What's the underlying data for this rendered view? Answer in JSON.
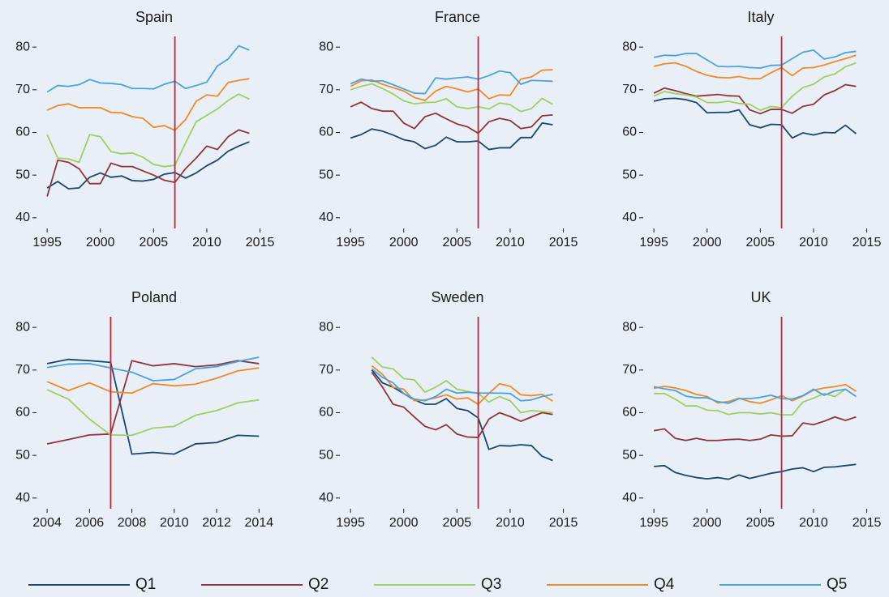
{
  "legend": [
    {
      "name": "Q1",
      "color": "#1a476f"
    },
    {
      "name": "Q2",
      "color": "#90353b"
    },
    {
      "name": "Q3",
      "color": "#a0cf63"
    },
    {
      "name": "Q4",
      "color": "#ee8a2c"
    },
    {
      "name": "Q5",
      "color": "#4aa3df"
    }
  ],
  "chart_data": [
    {
      "type": "line",
      "title": "Spain",
      "vline": 2007,
      "vline_color": "#c0273d",
      "x": [
        1995,
        1996,
        1997,
        1998,
        1999,
        2000,
        2001,
        2002,
        2003,
        2004,
        2005,
        2006,
        2007,
        2008,
        2009,
        2010,
        2011,
        2012,
        2013,
        2014
      ],
      "series": [
        {
          "values": [
            47,
            48.5,
            46.8,
            47,
            49.5,
            50.5,
            49.5,
            49.8,
            48.7,
            48.6,
            49,
            50.2,
            50.6,
            49.3,
            50.5,
            52.2,
            53.5,
            55.6,
            56.8,
            57.8
          ]
        },
        {
          "values": [
            45,
            53.5,
            53,
            51.5,
            48,
            48,
            52.8,
            52,
            52,
            51,
            50,
            48.8,
            48.3,
            51.5,
            54,
            56.8,
            56,
            59,
            60.6,
            59.8
          ]
        },
        {
          "values": [
            59.5,
            54,
            53.8,
            53,
            59.5,
            59,
            55.5,
            55,
            55.2,
            54.2,
            52.5,
            52,
            52.3,
            57.5,
            62.5,
            64,
            65.5,
            67.5,
            69,
            67.8
          ]
        },
        {
          "values": [
            65.2,
            66.3,
            66.7,
            65.8,
            65.8,
            65.8,
            64.7,
            64.6,
            63.7,
            63.3,
            61.2,
            61.6,
            60.5,
            63,
            67.3,
            68.8,
            68.5,
            71.7,
            72.2,
            72.6
          ]
        },
        {
          "values": [
            69.5,
            71,
            70.8,
            71.2,
            72.4,
            71.6,
            71.5,
            71.2,
            70.3,
            70.3,
            70.2,
            71.3,
            72,
            70.3,
            71,
            71.8,
            75.6,
            77.2,
            80.3,
            79.3
          ]
        }
      ],
      "xlim": [
        1994,
        2016.1
      ],
      "ylim": [
        37.5,
        82.5
      ],
      "xticks": [
        1995,
        2000,
        2005,
        2010,
        2015
      ],
      "yticks": [
        40,
        50,
        60,
        70,
        80
      ]
    },
    {
      "type": "line",
      "title": "France",
      "vline": 2007,
      "vline_color": "#c0273d",
      "x": [
        1995,
        1996,
        1997,
        1998,
        1999,
        2000,
        2001,
        2002,
        2003,
        2004,
        2005,
        2006,
        2007,
        2008,
        2009,
        2010,
        2011,
        2012,
        2013,
        2014
      ],
      "series": [
        {
          "values": [
            58.7,
            59.5,
            60.8,
            60.3,
            59.4,
            58.3,
            57.8,
            56.2,
            57,
            58.9,
            57.8,
            57.8,
            58,
            56,
            56.4,
            56.4,
            58.8,
            58.8,
            62.2,
            61.8
          ]
        },
        {
          "values": [
            66,
            67.1,
            65.6,
            65,
            65,
            62.2,
            60.9,
            63.7,
            64.5,
            63.2,
            62,
            61.3,
            59.8,
            62.5,
            63.3,
            62.8,
            60.9,
            61.3,
            63.9,
            64.1
          ]
        },
        {
          "values": [
            70,
            70.8,
            71.4,
            70.3,
            69,
            67.4,
            66.7,
            67,
            67.1,
            67.9,
            66,
            65.6,
            66,
            65.5,
            66.9,
            66.5,
            64.9,
            65.6,
            68,
            66.6
          ]
        },
        {
          "values": [
            70.8,
            72.1,
            72.3,
            71.3,
            70.5,
            69.7,
            68.2,
            67.5,
            69.7,
            70.8,
            70.2,
            69.5,
            70.2,
            67.9,
            68.8,
            68.7,
            72.5,
            73,
            74.6,
            74.7
          ]
        },
        {
          "values": [
            71.4,
            72.5,
            72,
            72.1,
            71.2,
            70.2,
            69.2,
            69.1,
            72.8,
            72.5,
            72.8,
            73,
            72.5,
            73.3,
            74.4,
            74,
            71.3,
            72.2,
            72.1,
            72
          ]
        }
      ],
      "xlim": [
        1994,
        2016.1
      ],
      "ylim": [
        37.5,
        82.5
      ],
      "xticks": [
        1995,
        2000,
        2005,
        2010,
        2015
      ],
      "yticks": [
        40,
        50,
        60,
        70,
        80
      ]
    },
    {
      "type": "line",
      "title": "Italy",
      "vline": 2007,
      "vline_color": "#c0273d",
      "x": [
        1995,
        1996,
        1997,
        1998,
        1999,
        2000,
        2001,
        2002,
        2003,
        2004,
        2005,
        2006,
        2007,
        2008,
        2009,
        2010,
        2011,
        2012,
        2013,
        2014
      ],
      "series": [
        {
          "values": [
            67.3,
            67.9,
            68,
            67.7,
            67,
            64.6,
            64.7,
            64.7,
            65.3,
            61.8,
            61.1,
            61.9,
            61.8,
            58.7,
            59.9,
            59.4,
            60,
            59.9,
            61.7,
            59.7
          ]
        },
        {
          "values": [
            69.2,
            70.4,
            69.8,
            69.1,
            68.5,
            68.7,
            68.9,
            68.6,
            68.5,
            65.3,
            64.4,
            65.4,
            65.4,
            64.5,
            66.1,
            66.6,
            68.8,
            69.8,
            71.2,
            70.8
          ]
        },
        {
          "values": [
            68.5,
            69.6,
            69.1,
            68.8,
            68.3,
            67,
            67,
            67.3,
            66.8,
            66.6,
            65.2,
            66.1,
            65.8,
            68.5,
            70.5,
            71.3,
            73,
            73.7,
            75.4,
            76.3
          ]
        },
        {
          "values": [
            75.5,
            76.1,
            76.3,
            75.5,
            74.3,
            73.4,
            72.9,
            72.8,
            73.1,
            72.6,
            72.6,
            74,
            75.2,
            73.3,
            75.1,
            75.2,
            75.8,
            76.6,
            77.3,
            78.1
          ]
        },
        {
          "values": [
            77.6,
            78.1,
            78,
            78.5,
            78.5,
            77,
            75.5,
            75.4,
            75.5,
            75.2,
            75.1,
            75.7,
            75.8,
            77.3,
            78.8,
            79.3,
            77.2,
            77.7,
            78.7,
            79
          ]
        }
      ],
      "xlim": [
        1994,
        2016.1
      ],
      "ylim": [
        37.5,
        82.5
      ],
      "xticks": [
        1995,
        2000,
        2005,
        2010,
        2015
      ],
      "yticks": [
        40,
        50,
        60,
        70,
        80
      ]
    },
    {
      "type": "line",
      "title": "Poland",
      "vline": 2007,
      "vline_color": "#c0273d",
      "x": [
        2004,
        2005,
        2006,
        2007,
        2008,
        2009,
        2010,
        2011,
        2012,
        2013,
        2014
      ],
      "series": [
        {
          "values": [
            71.5,
            72.5,
            72.2,
            71.8,
            50.3,
            50.7,
            50.3,
            52.7,
            53,
            54.7,
            54.5
          ]
        },
        {
          "values": [
            52.7,
            53.7,
            54.8,
            55,
            72.2,
            71,
            71.5,
            70.8,
            71.2,
            72.2,
            71.5
          ]
        },
        {
          "values": [
            65.4,
            63.2,
            58.5,
            54.8,
            54.7,
            56.4,
            56.8,
            59.4,
            60.5,
            62.3,
            63
          ]
        },
        {
          "values": [
            67.3,
            65.2,
            67,
            64.9,
            64.6,
            66.8,
            66.3,
            66.7,
            68.1,
            69.8,
            70.5
          ]
        },
        {
          "values": [
            70.6,
            71.4,
            71.5,
            70.5,
            69.5,
            67.5,
            67.8,
            70.3,
            70.8,
            72,
            73
          ]
        }
      ],
      "xlim": [
        2003.5,
        2014.6
      ],
      "ylim": [
        37.5,
        82.5
      ],
      "xticks": [
        2004,
        2006,
        2008,
        2010,
        2012,
        2014
      ],
      "yticks": [
        40,
        50,
        60,
        70,
        80
      ]
    },
    {
      "type": "line",
      "title": "Sweden",
      "vline": 2007,
      "vline_color": "#c0273d",
      "x": [
        1997,
        1998,
        1999,
        2000,
        2001,
        2002,
        2003,
        2004,
        2005,
        2006,
        2007,
        2008,
        2009,
        2010,
        2011,
        2012,
        2013,
        2014
      ],
      "series": [
        {
          "values": [
            70,
            67,
            66,
            64.5,
            63,
            62,
            62,
            63.3,
            61,
            60.5,
            58.8,
            51.4,
            52.3,
            52.2,
            52.5,
            52.3,
            49.8,
            48.8
          ]
        },
        {
          "values": [
            69.5,
            66,
            62,
            61.3,
            59,
            56.8,
            56,
            57.2,
            55,
            54.3,
            54.2,
            58.5,
            60,
            59.1,
            58,
            59,
            60,
            59.6
          ]
        },
        {
          "values": [
            73,
            70.7,
            70.3,
            68,
            67.7,
            64.8,
            66,
            67.5,
            65.5,
            65,
            64.5,
            62.5,
            63.8,
            62.8,
            60,
            60.5,
            60.3,
            60
          ]
        },
        {
          "values": [
            71,
            69,
            66,
            65.5,
            62.8,
            63,
            63.5,
            64.2,
            63.2,
            63.5,
            62,
            64.5,
            66.8,
            66.2,
            64.2,
            64,
            64.3,
            62.7
          ]
        },
        {
          "values": [
            70.3,
            68.3,
            67,
            64.5,
            63.2,
            62.8,
            63.8,
            65.5,
            64.6,
            64.8,
            64.6,
            64.6,
            64.6,
            64.5,
            62.8,
            63,
            63.8,
            64.3
          ]
        }
      ],
      "xlim": [
        1994,
        2016.1
      ],
      "ylim": [
        37.5,
        82.5
      ],
      "xticks": [
        1995,
        2000,
        2005,
        2010,
        2015
      ],
      "yticks": [
        40,
        50,
        60,
        70,
        80
      ]
    },
    {
      "type": "line",
      "title": "UK",
      "vline": 2007,
      "vline_color": "#c0273d",
      "x": [
        1995,
        1996,
        1997,
        1998,
        1999,
        2000,
        2001,
        2002,
        2003,
        2004,
        2005,
        2006,
        2007,
        2008,
        2009,
        2010,
        2011,
        2012,
        2013,
        2014
      ],
      "series": [
        {
          "values": [
            47.4,
            47.6,
            46,
            45.3,
            44.8,
            44.5,
            44.8,
            44.4,
            45.4,
            44.6,
            45.2,
            45.8,
            46.2,
            46.8,
            47.1,
            46.2,
            47.2,
            47.3,
            47.6,
            47.9
          ]
        },
        {
          "values": [
            55.8,
            56.2,
            54,
            53.5,
            54,
            53.5,
            53.5,
            53.7,
            53.8,
            53.5,
            53.8,
            54.8,
            54.5,
            54.6,
            57.6,
            57.2,
            58,
            59,
            58.2,
            59
          ]
        },
        {
          "values": [
            64.5,
            64.5,
            63.2,
            61.6,
            61.6,
            60.6,
            60.5,
            59.6,
            60,
            60,
            59.7,
            60,
            59.5,
            59.5,
            62.5,
            63.4,
            64.5,
            63.8,
            65.5,
            63.8
          ]
        },
        {
          "values": [
            65.7,
            66.2,
            65.8,
            65.2,
            64.3,
            63.8,
            62.3,
            62.6,
            63.4,
            62.6,
            62.2,
            63,
            64,
            62.8,
            63.9,
            65.3,
            65.8,
            66.1,
            66.6,
            65
          ]
        },
        {
          "values": [
            66.1,
            65.6,
            65.2,
            63.9,
            63.5,
            63.5,
            62.6,
            62.2,
            63.3,
            63.3,
            63.6,
            64.1,
            63.3,
            63.2,
            64,
            65.5,
            64.1,
            65.1,
            65.5,
            63.8
          ]
        }
      ],
      "xlim": [
        1994,
        2016.1
      ],
      "ylim": [
        37.5,
        82.5
      ],
      "xticks": [
        1995,
        2000,
        2005,
        2010,
        2015
      ],
      "yticks": [
        40,
        50,
        60,
        70,
        80
      ]
    }
  ]
}
